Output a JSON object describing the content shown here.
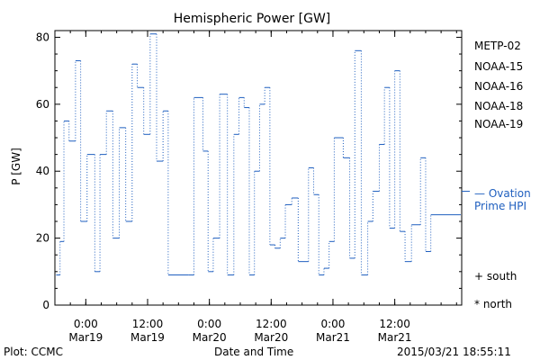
{
  "chart_data": {
    "type": "line",
    "title": "Hemispheric Power [GW]",
    "ylabel": "P [GW]",
    "xlabel": "Date and Time",
    "ylim": [
      0,
      82
    ],
    "yticks": [
      0,
      20,
      40,
      60,
      80
    ],
    "xlim": [
      "2015-03-18 18:00",
      "2015-03-22 01:00"
    ],
    "xticks": [
      {
        "time": "2015-03-19 00:00",
        "line1": "0:00",
        "line2": "Mar19"
      },
      {
        "time": "2015-03-19 12:00",
        "line1": "12:00",
        "line2": "Mar19"
      },
      {
        "time": "2015-03-20 00:00",
        "line1": "0:00",
        "line2": "Mar20"
      },
      {
        "time": "2015-03-20 12:00",
        "line1": "12:00",
        "line2": "Mar20"
      },
      {
        "time": "2015-03-21 00:00",
        "line1": "0:00",
        "line2": "Mar21"
      },
      {
        "time": "2015-03-21 12:00",
        "line1": "12:00",
        "line2": "Mar21"
      }
    ],
    "grid": false,
    "legend_position": "right",
    "legend": [
      {
        "name": "METP-02",
        "color": "#000000"
      },
      {
        "name": "NOAA-15",
        "color": "#2222cc"
      },
      {
        "name": "NOAA-16",
        "color": "#00bbcc"
      },
      {
        "name": "NOAA-18",
        "color": "#22cc55"
      },
      {
        "name": "NOAA-19",
        "color": "#ee8800"
      }
    ],
    "reference": {
      "value": 34,
      "label_line1": "Ovation",
      "label_line2": "Prime HPI",
      "color": "#1f5fbf"
    },
    "markers_legend": [
      {
        "symbol": "+",
        "label": "south"
      },
      {
        "symbol": "*",
        "label": "north"
      }
    ],
    "series": [
      {
        "name": "",
        "color": "#1f5fbf",
        "x": [
          "2015-03-18 18:15",
          "2015-03-18 19:00",
          "2015-03-18 19:45",
          "2015-03-18 20:45",
          "2015-03-18 22:00",
          "2015-03-18 23:00",
          "2015-03-19 00:15",
          "2015-03-19 01:45",
          "2015-03-19 02:45",
          "2015-03-19 04:00",
          "2015-03-19 05:15",
          "2015-03-19 06:30",
          "2015-03-19 07:45",
          "2015-03-19 09:00",
          "2015-03-19 10:00",
          "2015-03-19 11:15",
          "2015-03-19 12:30",
          "2015-03-19 13:45",
          "2015-03-19 15:00",
          "2015-03-19 16:00",
          "2015-03-19 20:00",
          "2015-03-19 21:00",
          "2015-03-19 22:45",
          "2015-03-19 23:45",
          "2015-03-20 00:45",
          "2015-03-20 02:00",
          "2015-03-20 03:30",
          "2015-03-20 04:45",
          "2015-03-20 05:45",
          "2015-03-20 06:45",
          "2015-03-20 07:45",
          "2015-03-20 08:45",
          "2015-03-20 09:45",
          "2015-03-20 10:45",
          "2015-03-20 11:45",
          "2015-03-20 12:45",
          "2015-03-20 13:45",
          "2015-03-20 14:45",
          "2015-03-20 16:00",
          "2015-03-20 17:15",
          "2015-03-20 19:15",
          "2015-03-20 20:15",
          "2015-03-20 21:15",
          "2015-03-20 22:15",
          "2015-03-20 23:15",
          "2015-03-21 00:15",
          "2015-03-21 02:00",
          "2015-03-21 03:15",
          "2015-03-21 04:15",
          "2015-03-21 05:30",
          "2015-03-21 06:45",
          "2015-03-21 07:45",
          "2015-03-21 09:00",
          "2015-03-21 10:00",
          "2015-03-21 11:00",
          "2015-03-21 12:00",
          "2015-03-21 13:00",
          "2015-03-21 14:00",
          "2015-03-21 15:15",
          "2015-03-21 17:00",
          "2015-03-21 18:00",
          "2015-03-21 19:00"
        ],
        "y": [
          9,
          19,
          55,
          49,
          73,
          25,
          45,
          10,
          45,
          58,
          20,
          53,
          25,
          72,
          65,
          51,
          81,
          43,
          58,
          9,
          9,
          62,
          46,
          10,
          20,
          63,
          9,
          51,
          62,
          59,
          9,
          40,
          60,
          65,
          18,
          17,
          20,
          30,
          32,
          13,
          41,
          33,
          9,
          11,
          19,
          50,
          44,
          14,
          76,
          9,
          25,
          34,
          48,
          65,
          23,
          70,
          22,
          13,
          24,
          44,
          16,
          27
        ]
      }
    ]
  },
  "footer": {
    "left": "Plot: CCMC",
    "center": "Date and Time",
    "right": "2015/03/21  18:55:11"
  }
}
